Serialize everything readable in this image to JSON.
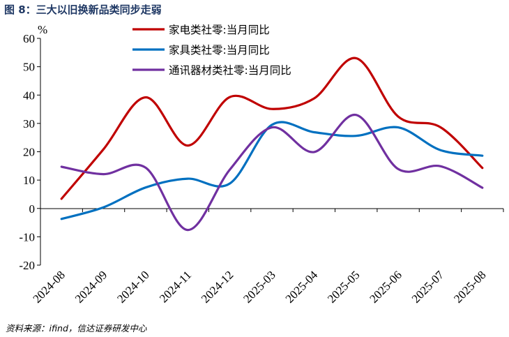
{
  "figure_title": "图 8：三大以旧换新品类同步走弱",
  "source_note": "资料来源：ifind，信达证券研发中心",
  "chart_data": {
    "type": "line",
    "title": "三大以旧换新品类同步走弱",
    "ylabel": "%",
    "xlabel": "",
    "ylim": [
      -20,
      60
    ],
    "yticks": [
      -20,
      -10,
      0,
      10,
      20,
      30,
      40,
      50,
      60
    ],
    "categories": [
      "2024-08",
      "2024-09",
      "2024-10",
      "2024-11",
      "2024-12",
      "2025-03",
      "2025-04",
      "2025-05",
      "2025-06",
      "2025-07",
      "2025-08"
    ],
    "legend_position": "top-center",
    "grid": false,
    "series": [
      {
        "name": "家电类社零:当月同比",
        "color": "#c00000",
        "values": [
          3.4,
          20.9,
          39.2,
          22.2,
          39.3,
          35.1,
          38.8,
          53.0,
          32.4,
          28.7,
          14.3
        ]
      },
      {
        "name": "家具类社零:当月同比",
        "color": "#0070c0",
        "values": [
          -3.7,
          0.4,
          7.4,
          10.5,
          8.8,
          29.5,
          26.9,
          25.6,
          28.6,
          20.6,
          18.6
        ]
      },
      {
        "name": "通讯器材类社零:当月同比",
        "color": "#7030a0",
        "values": [
          14.7,
          12.1,
          14.4,
          -7.6,
          13.7,
          28.6,
          19.9,
          33.0,
          13.9,
          14.9,
          7.3
        ]
      }
    ]
  }
}
